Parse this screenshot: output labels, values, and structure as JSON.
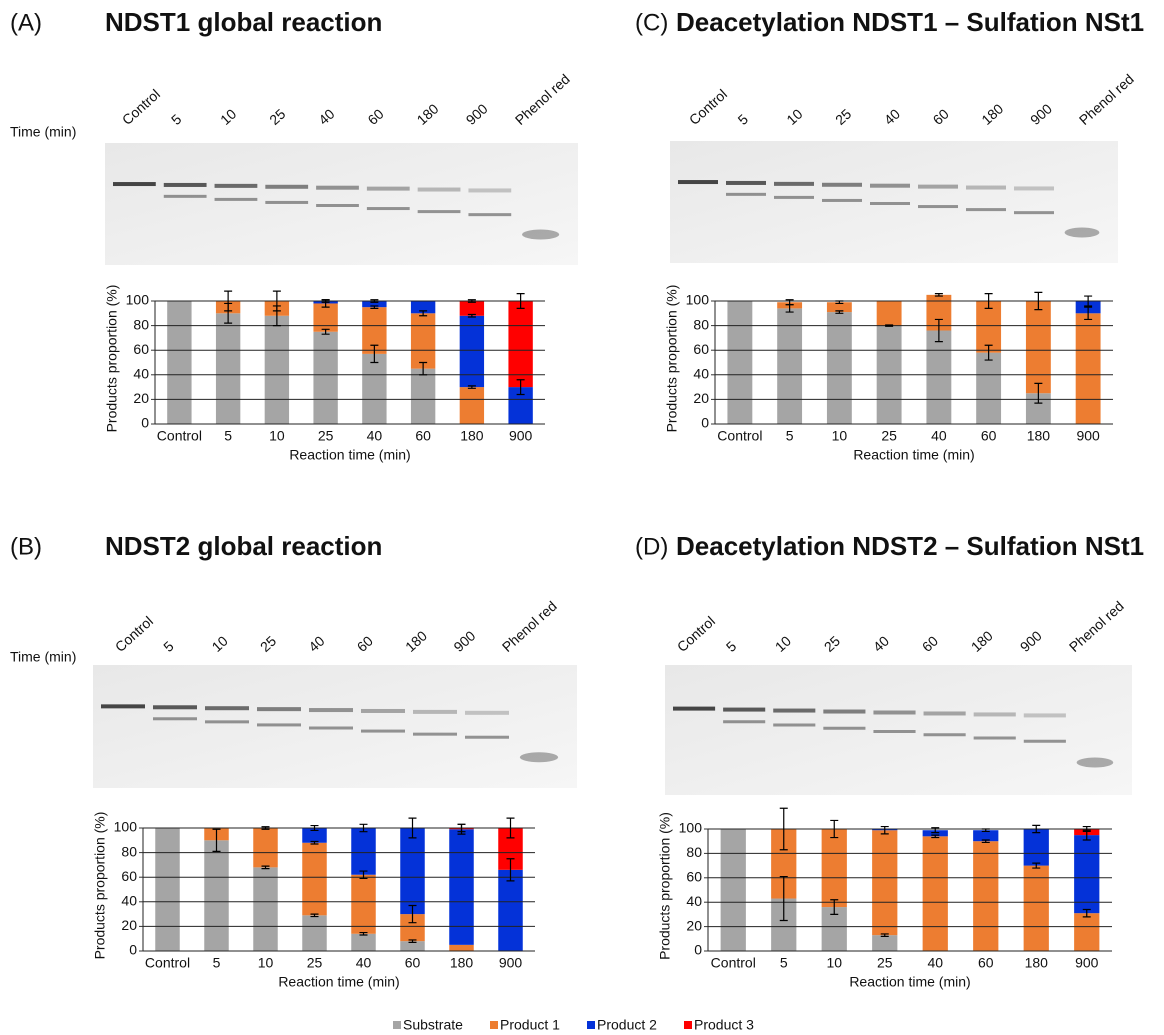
{
  "chart_data": [
    {
      "type": "bar",
      "stacked": true,
      "panel": "(A)",
      "title": "NDST1 global reaction",
      "gel_header": "Time (min)",
      "lanes": [
        "Control",
        "5",
        "10",
        "25",
        "40",
        "60",
        "180",
        "900",
        "Phenol red"
      ],
      "categories": [
        "Control",
        "5",
        "10",
        "25",
        "40",
        "60",
        "180",
        "900"
      ],
      "xlabel": "Reaction time (min)",
      "ylabel": "Products proportion (%)",
      "ylim": [
        0,
        100
      ],
      "yticks": [
        0,
        20,
        40,
        60,
        80,
        100
      ],
      "grid": true,
      "series": [
        {
          "name": "Substrate",
          "color": "#a5a5a5",
          "values": [
            100,
            90,
            88,
            75,
            57,
            45,
            0,
            0
          ],
          "errors": [
            0,
            8,
            8,
            2,
            7,
            5,
            null,
            null
          ]
        },
        {
          "name": "Product 1",
          "color": "#ed7d31",
          "values": [
            0,
            10,
            12,
            23,
            38,
            45,
            30,
            0
          ],
          "errors": [
            null,
            8,
            8,
            3,
            1,
            2,
            1,
            null
          ]
        },
        {
          "name": "Product 2",
          "color": "#0432d8",
          "values": [
            0,
            0,
            0,
            2,
            5,
            10,
            58,
            30
          ],
          "errors": [
            null,
            null,
            null,
            1,
            1,
            null,
            1,
            6
          ]
        },
        {
          "name": "Product 3",
          "color": "#ff0000",
          "values": [
            0,
            0,
            0,
            0,
            0,
            0,
            12,
            70
          ],
          "errors": [
            null,
            null,
            null,
            null,
            null,
            null,
            1,
            6
          ]
        }
      ]
    },
    {
      "type": "bar",
      "stacked": true,
      "panel": "(C)",
      "title": "Deacetylation NDST1 – Sulfation NSt1",
      "lanes": [
        "Control",
        "5",
        "10",
        "25",
        "40",
        "60",
        "180",
        "900",
        "Phenol red"
      ],
      "categories": [
        "Control",
        "5",
        "10",
        "25",
        "40",
        "60",
        "180",
        "900"
      ],
      "xlabel": "Reaction time (min)",
      "ylabel": "Products proportion (%)",
      "ylim": [
        0,
        100
      ],
      "yticks": [
        0,
        20,
        40,
        60,
        80,
        100
      ],
      "grid": true,
      "series": [
        {
          "name": "Substrate",
          "color": "#a5a5a5",
          "values": [
            100,
            94,
            91,
            80,
            76,
            58,
            25,
            0
          ],
          "errors": [
            0,
            3,
            1,
            0.5,
            9,
            6,
            8,
            null
          ]
        },
        {
          "name": "Product 1",
          "color": "#ed7d31",
          "values": [
            0,
            5,
            8,
            20,
            29,
            42,
            75,
            90
          ],
          "errors": [
            null,
            2,
            1,
            null,
            1,
            6,
            7,
            5
          ]
        },
        {
          "name": "Product 2",
          "color": "#0432d8",
          "values": [
            0,
            0,
            0,
            0,
            0,
            0,
            0,
            10
          ],
          "errors": [
            null,
            null,
            null,
            null,
            null,
            null,
            null,
            4
          ]
        }
      ]
    },
    {
      "type": "bar",
      "stacked": true,
      "panel": "(B)",
      "title": "NDST2 global reaction",
      "gel_header": "Time (min)",
      "lanes": [
        "Control",
        "5",
        "10",
        "25",
        "40",
        "60",
        "180",
        "900",
        "Phenol red"
      ],
      "categories": [
        "Control",
        "5",
        "10",
        "25",
        "40",
        "60",
        "180",
        "900"
      ],
      "xlabel": "Reaction time (min)",
      "ylabel": "Products proportion (%)",
      "ylim": [
        0,
        100
      ],
      "yticks": [
        0,
        20,
        40,
        60,
        80,
        100
      ],
      "grid": true,
      "series": [
        {
          "name": "Substrate",
          "color": "#a5a5a5",
          "values": [
            100,
            90,
            68,
            29,
            14,
            8,
            0,
            0
          ],
          "errors": [
            0,
            9,
            1,
            1,
            1,
            1,
            null,
            null
          ]
        },
        {
          "name": "Product 1",
          "color": "#ed7d31",
          "values": [
            0,
            10,
            32,
            59,
            48,
            22,
            5,
            0
          ],
          "errors": [
            null,
            null,
            1,
            1,
            3,
            7,
            null,
            null
          ]
        },
        {
          "name": "Product 2",
          "color": "#0432d8",
          "values": [
            0,
            0,
            0,
            12,
            38,
            70,
            94,
            66
          ],
          "errors": [
            null,
            null,
            null,
            2,
            3,
            8,
            4,
            9
          ]
        },
        {
          "name": "Product 3",
          "color": "#ff0000",
          "values": [
            0,
            0,
            0,
            0,
            0,
            0,
            1,
            34
          ],
          "errors": [
            null,
            null,
            null,
            null,
            null,
            null,
            3,
            8
          ]
        }
      ]
    },
    {
      "type": "bar",
      "stacked": true,
      "panel": "(D)",
      "title": "Deacetylation NDST2 – Sulfation NSt1",
      "lanes": [
        "Control",
        "5",
        "10",
        "25",
        "40",
        "60",
        "180",
        "900",
        "Phenol red"
      ],
      "categories": [
        "Control",
        "5",
        "10",
        "25",
        "40",
        "60",
        "180",
        "900"
      ],
      "xlabel": "Reaction time (min)",
      "ylabel": "Products proportion (%)",
      "ylim": [
        0,
        100
      ],
      "yticks": [
        0,
        20,
        40,
        60,
        80,
        100
      ],
      "grid": true,
      "series": [
        {
          "name": "Substrate",
          "color": "#a5a5a5",
          "values": [
            100,
            43,
            36,
            13,
            0,
            0,
            0,
            0
          ],
          "errors": [
            0,
            18,
            6,
            1,
            null,
            null,
            null,
            null
          ]
        },
        {
          "name": "Product 1",
          "color": "#ed7d31",
          "values": [
            0,
            57,
            64,
            86,
            94,
            90,
            70,
            31
          ],
          "errors": [
            null,
            17,
            7,
            3,
            1,
            1,
            2,
            3
          ]
        },
        {
          "name": "Product 2",
          "color": "#0432d8",
          "values": [
            0,
            0,
            0,
            1,
            5,
            9,
            30,
            64
          ],
          "errors": [
            null,
            null,
            null,
            null,
            2,
            1,
            3,
            4
          ]
        },
        {
          "name": "Product 3",
          "color": "#ff0000",
          "values": [
            0,
            0,
            0,
            0,
            0,
            0,
            0,
            5
          ],
          "errors": [
            null,
            null,
            null,
            null,
            null,
            null,
            null,
            2
          ]
        }
      ]
    }
  ]
}
